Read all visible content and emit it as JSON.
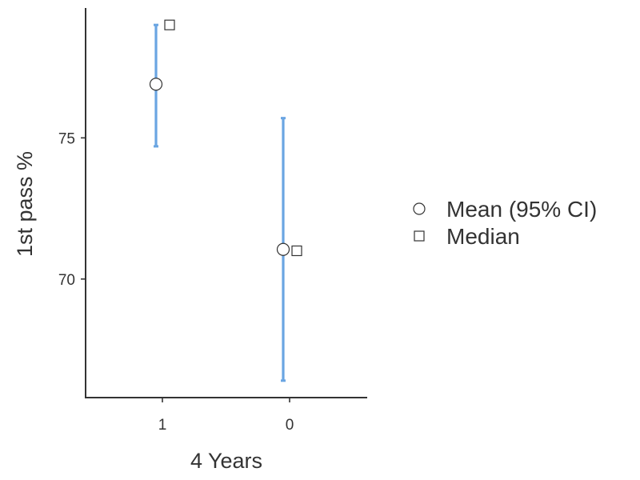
{
  "chart_data": {
    "type": "scatter",
    "xlabel": "4 Years",
    "ylabel": "1st pass %",
    "categories": [
      "1",
      "0"
    ],
    "yticks": [
      70,
      75
    ],
    "ylim": [
      65.8,
      79.6
    ],
    "grid": false,
    "legend_position": "right",
    "series": [
      {
        "name": "Mean (95% CI)",
        "marker": "circle",
        "values": [
          76.9,
          71.05
        ],
        "ci_lower": [
          74.7,
          66.4
        ],
        "ci_upper": [
          79.0,
          75.7
        ]
      },
      {
        "name": "Median",
        "marker": "square",
        "values": [
          79.0,
          71.0
        ]
      }
    ],
    "colors": {
      "errorbar": "#6aa5e2",
      "axis": "#333333",
      "marker_fill": "#ffffff",
      "marker_stroke": "#333333"
    }
  }
}
